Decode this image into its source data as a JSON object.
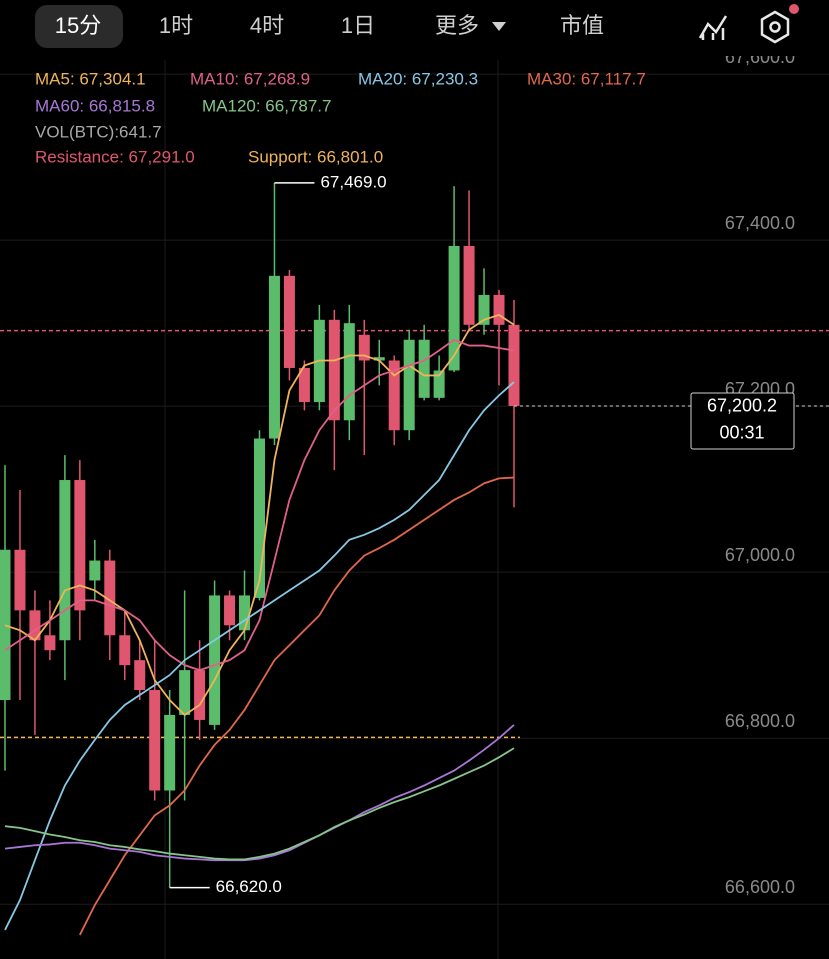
{
  "tabs": [
    "15分",
    "1时",
    "4时",
    "1日",
    "更多",
    "市值"
  ],
  "selected_tab": 0,
  "chart_data": {
    "type": "candlestick",
    "up_color": "#5bbd6b",
    "down_color": "#e0566f",
    "ylim": [
      66534,
      67617
    ],
    "yticks": [
      {
        "value": 66600,
        "label": "66,600.0"
      },
      {
        "value": 66800,
        "label": "66,800.0"
      },
      {
        "value": 67000,
        "label": "67,000.0"
      },
      {
        "value": 67200,
        "label": "67,200.0"
      },
      {
        "value": 67400,
        "label": "67,400.0"
      },
      {
        "value": 67600,
        "label": "67,600.0"
      }
    ],
    "grid": true,
    "open": [
      66846,
      67027,
      66954,
      66924,
      66918,
      67111,
      66990,
      67014,
      66924,
      66894,
      66858,
      66737,
      66828,
      66882,
      66816,
      66972,
      66930,
      66969,
      67161,
      67357,
      67246,
      67205,
      67304,
      67183,
      67286,
      67255,
      67255,
      67171,
      67210,
      67210,
      67243,
      67393,
      67298,
      67334,
      67298
    ],
    "close": [
      67027,
      66954,
      66918,
      66906,
      67111,
      66954,
      67014,
      66924,
      66888,
      66858,
      66737,
      66828,
      66882,
      66822,
      66972,
      66936,
      66972,
      67161,
      67357,
      67246,
      67205,
      67304,
      67183,
      67300,
      67255,
      67259,
      67171,
      67280,
      67280,
      67243,
      67393,
      67298,
      67334,
      67298,
      67200.2
    ],
    "high": [
      67129,
      67099,
      66978,
      66966,
      67141,
      67135,
      67039,
      67027,
      66954,
      66918,
      66918,
      66858,
      66978,
      66918,
      66990,
      66978,
      67002,
      67171,
      67469,
      67364,
      67255,
      67322,
      67316,
      67322,
      67304,
      67280,
      67261,
      67292,
      67298,
      67261,
      67465,
      67460,
      67366,
      67340,
      67328
    ],
    "low": [
      66761,
      66846,
      66804,
      66894,
      66870,
      66918,
      66966,
      66894,
      66870,
      66846,
      66725,
      66620,
      66725,
      66798,
      66810,
      66918,
      66918,
      66966,
      67153,
      67231,
      67195,
      67195,
      67123,
      67159,
      67141,
      67225,
      67153,
      67159,
      67207,
      67207,
      67241,
      67292,
      67286,
      67225,
      67078
    ],
    "series": [
      {
        "name": "MA5",
        "legend_label": "MA5: 67,304.1",
        "color": "#f0b35a",
        "values": [
          66936,
          66930,
          66918,
          66942,
          66978,
          66984,
          66978,
          66966,
          66954,
          66918,
          66870,
          66846,
          66828,
          66840,
          66870,
          66906,
          66930,
          66990,
          67135,
          67219,
          67249,
          67255,
          67255,
          67261,
          67261,
          67255,
          67237,
          67249,
          67237,
          67237,
          67261,
          67292,
          67304,
          67310,
          67298
        ]
      },
      {
        "name": "MA10",
        "legend_label": "MA10: 67,268.9",
        "color": "#e0608a",
        "values": [
          66906,
          66918,
          66930,
          66942,
          66954,
          66966,
          66966,
          66960,
          66954,
          66942,
          66918,
          66900,
          66888,
          66882,
          66888,
          66894,
          66906,
          66942,
          67014,
          67087,
          67135,
          67171,
          67195,
          67213,
          67225,
          67237,
          67243,
          67249,
          67255,
          67267,
          67280,
          67273,
          67273,
          67270,
          67267
        ]
      },
      {
        "name": "MA20",
        "legend_label": "MA20: 67,230.3",
        "color": "#86c8e6",
        "values": [
          66569,
          66605,
          66653,
          66701,
          66743,
          66773,
          66798,
          66822,
          66840,
          66852,
          66864,
          66876,
          66894,
          66906,
          66918,
          66930,
          66942,
          66954,
          66966,
          66978,
          66990,
          67002,
          67020,
          67039,
          67045,
          67053,
          67063,
          67075,
          67093,
          67111,
          67141,
          67171,
          67195,
          67213,
          67229
        ]
      },
      {
        "name": "MA30",
        "legend_label": "MA30: 67,117.7",
        "color": "#e2684a",
        "values": [
          null,
          null,
          null,
          null,
          null,
          66563,
          66599,
          66629,
          66659,
          66683,
          66707,
          66719,
          66737,
          66767,
          66792,
          66810,
          66834,
          66864,
          66894,
          66912,
          66930,
          66948,
          66978,
          67002,
          67020,
          67029,
          67039,
          67051,
          67063,
          67075,
          67087,
          67096,
          67107,
          67113,
          67114
        ]
      },
      {
        "name": "MA60",
        "legend_label": "MA60: 66,815.8",
        "color": "#a877d6",
        "values": [
          66667,
          66669,
          66671,
          66672,
          66674,
          66674,
          66671,
          66667,
          66665,
          66663,
          66659,
          66657,
          66655,
          66654,
          66653,
          66653,
          66653,
          66655,
          66659,
          66665,
          66674,
          66683,
          66692,
          66701,
          66711,
          66719,
          66728,
          66735,
          66743,
          66752,
          66761,
          66773,
          66786,
          66800,
          66816
        ]
      },
      {
        "name": "MA120",
        "legend_label": "MA120: 66,787.7",
        "color": "#86c48a",
        "values": [
          66694,
          66692,
          66688,
          66684,
          66681,
          66677,
          66675,
          66671,
          66669,
          66666,
          66664,
          66661,
          66659,
          66657,
          66655,
          66654,
          66654,
          66657,
          66661,
          66667,
          66675,
          66683,
          66693,
          66701,
          66708,
          66716,
          66723,
          66729,
          66736,
          66743,
          66751,
          66759,
          66767,
          66777,
          66788
        ]
      }
    ],
    "volume_label": "VOL(BTC):641.7",
    "resistance": {
      "value": 67291,
      "label": "Resistance: 67,291.0",
      "color": "#e0566f"
    },
    "support": {
      "value": 66801,
      "label": "Support: 66,801.0",
      "color": "#f0b35a"
    },
    "high_marker": {
      "value": 67469,
      "label": "67,469.0"
    },
    "low_marker": {
      "value": 66620,
      "label": "66,620.0"
    },
    "last_price": {
      "value": 67200.2,
      "label": "67,200.2",
      "countdown": "00:31"
    }
  }
}
